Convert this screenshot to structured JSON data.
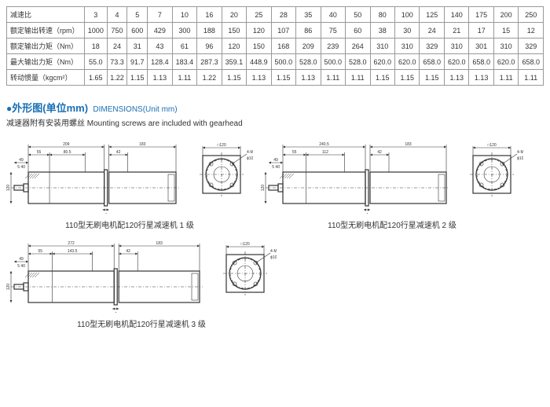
{
  "table": {
    "rows": [
      {
        "label": "减速比",
        "values": [
          "3",
          "4",
          "5",
          "7",
          "10",
          "16",
          "20",
          "25",
          "28",
          "35",
          "40",
          "50",
          "80",
          "100",
          "125",
          "140",
          "175",
          "200",
          "250"
        ]
      },
      {
        "label": "额定输出转速（rpm）",
        "values": [
          "1000",
          "750",
          "600",
          "429",
          "300",
          "188",
          "150",
          "120",
          "107",
          "86",
          "75",
          "60",
          "38",
          "30",
          "24",
          "21",
          "17",
          "15",
          "12"
        ]
      },
      {
        "label": "额定输出力矩（Nm）",
        "values": [
          "18",
          "24",
          "31",
          "43",
          "61",
          "96",
          "120",
          "150",
          "168",
          "209",
          "239",
          "264",
          "310",
          "310",
          "329",
          "310",
          "301",
          "310",
          "329"
        ]
      },
      {
        "label": "最大输出力矩（Nm）",
        "values": [
          "55.0",
          "73.3",
          "91.7",
          "128.4",
          "183.4",
          "287.3",
          "359.1",
          "448.9",
          "500.0",
          "528.0",
          "500.0",
          "528.0",
          "620.0",
          "620.0",
          "658.0",
          "620.0",
          "658.0",
          "620.0",
          "658.0"
        ]
      },
      {
        "label": "转动惯量（kgcm²）",
        "values": [
          "1.65",
          "1.22",
          "1.15",
          "1.13",
          "1.11",
          "1.22",
          "1.15",
          "1.13",
          "1.15",
          "1.13",
          "1.11",
          "1.11",
          "1.15",
          "1.15",
          "1.15",
          "1.13",
          "1.13",
          "1.11",
          "1.11"
        ]
      }
    ]
  },
  "section": {
    "title_cn": "外形图(单位mm)",
    "title_en": "DIMENSIONS(Unit mm)",
    "subtitle_cn": "减速器附有安装用螺丝",
    "subtitle_en": "Mounting screws are included with gearhead"
  },
  "diagrams": [
    {
      "caption": "110型无刷电机配120行星减速机 1 级",
      "side": {
        "total_motor": "209",
        "total_gear": "183",
        "seg1": "55",
        "seg2": "80.5",
        "seg3": "42",
        "shaft_h": "49",
        "shaft_step": "5",
        "note40": "40",
        "flange_w": "4",
        "body_h": "120"
      },
      "front": {
        "sq": "120",
        "pcd": "100",
        "bolt": "4-M8T20"
      }
    },
    {
      "caption": "110型无刷电机配120行星减速机 2 级",
      "side": {
        "total_motor": "240.5",
        "total_gear": "183",
        "seg1": "55",
        "seg2": "112",
        "seg3": "42",
        "shaft_h": "49",
        "shaft_step": "5",
        "note40": "40",
        "flange_w": "4",
        "body_h": "120"
      },
      "front": {
        "sq": "120",
        "pcd": "100",
        "bolt": "4-M8T20"
      }
    },
    {
      "caption": "110型无刷电机配120行星减速机 3 级",
      "side": {
        "total_motor": "272",
        "total_gear": "183",
        "seg1": "55",
        "seg2": "143.5",
        "seg3": "42",
        "shaft_h": "49",
        "shaft_step": "5",
        "note40": "40",
        "flange_w": "4",
        "body_h": "120"
      },
      "front": {
        "sq": "120",
        "pcd": "100",
        "bolt": "4-M8T20"
      }
    }
  ],
  "style": {
    "accent": "#1a6fb5",
    "line": "#333333"
  }
}
